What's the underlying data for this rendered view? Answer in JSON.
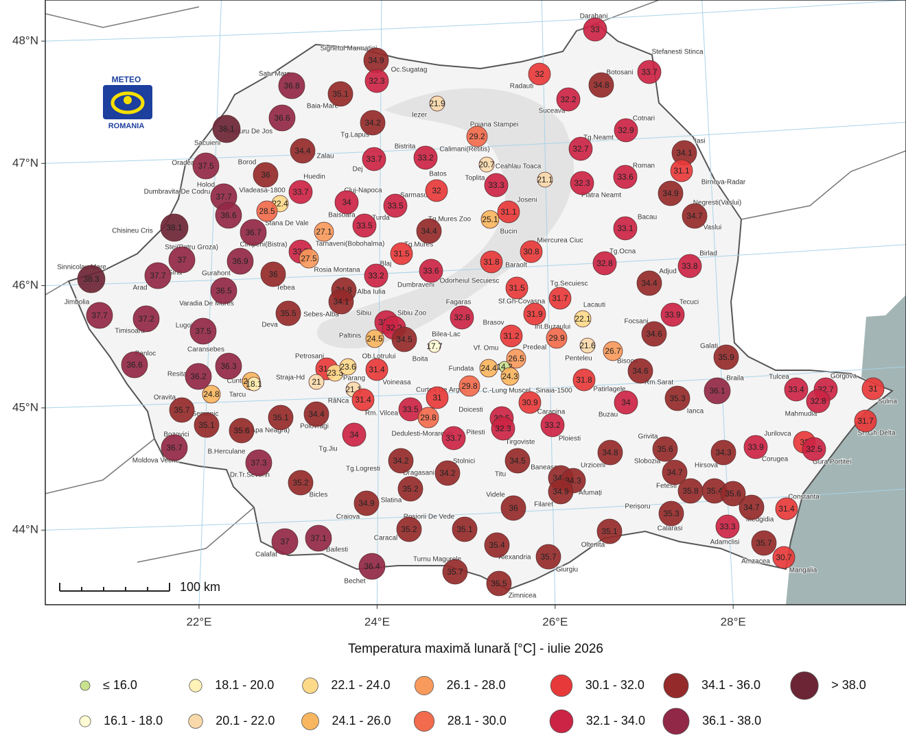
{
  "map": {
    "logo": {
      "line1": "METEO",
      "line2": "ROMANIA"
    },
    "title": "Temperatura maximă lunară [°C] - iulie 2026",
    "scale_label": "100 km",
    "lat_ticks": [
      {
        "value": 48,
        "label": "48°N"
      },
      {
        "value": 47,
        "label": "47°N"
      },
      {
        "value": 46,
        "label": "46°N"
      },
      {
        "value": 45,
        "label": "45°N"
      },
      {
        "value": 44,
        "label": "44°N"
      }
    ],
    "lon_ticks": [
      {
        "value": 22,
        "label": "22°E"
      },
      {
        "value": 24,
        "label": "24°E"
      },
      {
        "value": 26,
        "label": "26°E"
      },
      {
        "value": 28,
        "label": "28°E"
      }
    ],
    "legend": [
      {
        "label": "≤ 16.0",
        "color": "#c9e28e",
        "max": 16
      },
      {
        "label": "16.1 - 18.0",
        "color": "#fffbd2",
        "max": 18
      },
      {
        "label": "18.1 - 20.0",
        "color": "#fff2b6",
        "max": 20
      },
      {
        "label": "20.1 - 22.0",
        "color": "#f9d9aa",
        "max": 22
      },
      {
        "label": "22.1 - 24.0",
        "color": "#fdd98a",
        "max": 24
      },
      {
        "label": "24.1 - 26.0",
        "color": "#f8b660",
        "max": 26
      },
      {
        "label": "26.1 - 28.0",
        "color": "#f79a5c",
        "max": 28
      },
      {
        "label": "28.1 - 30.0",
        "color": "#f26b4c",
        "max": 30
      },
      {
        "label": "30.1 - 32.0",
        "color": "#e8393a",
        "max": 32
      },
      {
        "label": "32.1 - 34.0",
        "color": "#cc2444",
        "max": 34
      },
      {
        "label": "34.1 - 36.0",
        "color": "#952a2a",
        "max": 36
      },
      {
        "label": "36.1 - 38.0",
        "color": "#922847",
        "max": 38
      },
      {
        "label": "> 38.0",
        "color": "#6c2535",
        "min": 38
      }
    ],
    "values": [
      33,
      34.9,
      32.3,
      32,
      33.7,
      36.8,
      35.1,
      34.8,
      32.2,
      21.9,
      36.6,
      34.2,
      32.9,
      38.1,
      29.2,
      34.4,
      32.7,
      34.1,
      37.5,
      33.7,
      33.2,
      20.7,
      31.1,
      36,
      33.6,
      21.1,
      33.3,
      32,
      32.3,
      33.7,
      37.7,
      34.9,
      22.4,
      34,
      33.5,
      28.5,
      36.6,
      31.1,
      25.1,
      34.7,
      38.1,
      36.7,
      27.1,
      33.5,
      34.4,
      33.1,
      37,
      36.9,
      33.7,
      27.5,
      31.5,
      30.8,
      31.8,
      32.8,
      33.8,
      38.3,
      37.7,
      36,
      33.2,
      33.6,
      34.4,
      31.5,
      36.5,
      34.8,
      34.1,
      31.7,
      37.7,
      37.2,
      35.5,
      32.8,
      31.9,
      22.1,
      33.9,
      37.5,
      33.1,
      32.2,
      34.5,
      24.5,
      31.2,
      29.9,
      34.6,
      17.7,
      21.6,
      26.7,
      35.9,
      36.6,
      36.3,
      26.5,
      24.4,
      14.2,
      24.3,
      31.2,
      23.3,
      23.6,
      21,
      31.4,
      34.6,
      36.2,
      24.9,
      18.1,
      31.8,
      21.1,
      36.1,
      33.4,
      32.7,
      31,
      35.3,
      29.8,
      31,
      30.9,
      31.4,
      24.8,
      35.7,
      34,
      32.8,
      33.5,
      29.8,
      32.5,
      32.3,
      33.2,
      35.1,
      34.4,
      35.1,
      35.6,
      31.7,
      34,
      33.7,
      33.9,
      32,
      32.5,
      36.7,
      35.6,
      34.8,
      34.3,
      37.3,
      34.2,
      34.5,
      34.7,
      34.2,
      34.4,
      34.3,
      34.9,
      35.2,
      35.2,
      35.8,
      35.4,
      35.6,
      34.9,
      36,
      34.7,
      31.4,
      35.3,
      33.3,
      35.2,
      35.1,
      35.1,
      37,
      37.1,
      35.4,
      35.7,
      35.7,
      30.7,
      36.4,
      35.7,
      35.5
    ],
    "places": [
      "Darabani",
      "Stefanesti Stinca",
      "Sighetul Marmatiei",
      "Oc.Sugatag",
      "Satu Mare",
      "Radauti",
      "Botosani",
      "Baia-Mare",
      "Iezer",
      "Suceava",
      "Cotnari",
      "Supuru De Jos",
      "Tg.Lapus",
      "Poiana Stampei",
      "Sacuieni",
      "Bistrita",
      "Calimani(Retitis)",
      "Tg.Neamt",
      "Iasi",
      "Zalau",
      "Oradea",
      "Borod",
      "Dej",
      "Ceahlau Toaca",
      "Roman",
      "Batos",
      "Toplita",
      "Holod",
      "Huedin",
      "Birnova-Radar",
      "Vladeasa-1800",
      "Cluj-Napoca",
      "Sarmasu",
      "Piatra Neamt",
      "Dumbravita De Codru",
      "Joseni",
      "Negresti(Vaslui)",
      "Baisoara",
      "Turda",
      "Stana De Vale",
      "Tg.Mures Zoo",
      "Bacau",
      "Vaslui",
      "Chisineu Cris",
      "Bucin",
      "Cimpeni(Bistra)",
      "Tarnaveni(Bobohalma)",
      "Tg.Mures",
      "Miercurea Ciuc",
      "Stei(Petru Groza)",
      "Tg.Ocna",
      "Birlad",
      "Sinnicolau Mare",
      "Rosia Montana",
      "Blaj",
      "Baraolt",
      "Adjud",
      "Arad",
      "Siria",
      "Gurahont",
      "Dumbraveni",
      "Odorheiul Secuiesc",
      "Tebea",
      "Alba Iulia",
      "Tg.Secuiesc",
      "Jimbolia",
      "Varadia De Mures",
      "Fagaras",
      "Sf.Gh-Covasna",
      "Lacauti",
      "Tecuci",
      "Sebes-Alba",
      "Sibiu",
      "Sibiu Zoo",
      "Brasov",
      "Int.Buzaului",
      "Focsani",
      "Timisoara",
      "Lugoj",
      "Deva",
      "Paltinis",
      "Bilea-Lac",
      "Vf. Omu",
      "Predeal",
      "Galati",
      "Caransebes",
      "Banloc",
      "Petrosani",
      "Ob.Lotrului",
      "Boita",
      "Penteleu",
      "Bisoca",
      "Fundata",
      "Straja-Hd",
      "Resita",
      "Cuntu",
      "Parang",
      "Voineasa",
      "Braila",
      "Tulcea",
      "Gorgova",
      "Tarcu",
      "C.-Lung Muscel",
      "Sinaia-1500",
      "Rm.Sarat",
      "Curtea De Arges",
      "Patirlagele",
      "Oravita",
      "RâNca",
      "Doicesti",
      "Semenic",
      "Ianca",
      "Rm. Vilcea",
      "Mahmudia",
      "Sulina",
      "Buzau",
      "Bozovici",
      "Baile(Apa Neagra)",
      "Polovragi",
      "Dedulesti-Morarestii",
      "Pitesti",
      "Carapina",
      "Ploiesti",
      "Tirgoviste",
      "Grivita",
      "Jurilovca",
      "Sf. Gh-Delta",
      "Tg.Jiu",
      "B.Herculane",
      "Moldova Veche",
      "Corugea",
      "Gura Portitei",
      "Slobozia",
      "Hirsova",
      "Stolnici",
      "Urziceni",
      "Titu",
      "Baneasa",
      "Tg.Logresti",
      "Dragasani",
      "Dr.Tr.Severin",
      "Fetesti",
      "Bicles",
      "Afumați",
      "Slatina",
      "Videle",
      "Constanta",
      "Perișoru",
      "Filaret",
      "Craiova",
      "Calarasi",
      "Medgidia",
      "Adamclisi",
      "Caracal",
      "Rosiorii De Vede",
      "Oltenita",
      "Bailesti",
      "Calafat",
      "Turnu Magurele",
      "Alexandria",
      "Amzacea",
      "Giurgiu",
      "Mangalia",
      "Bechet",
      "Zimnicea"
    ]
  }
}
